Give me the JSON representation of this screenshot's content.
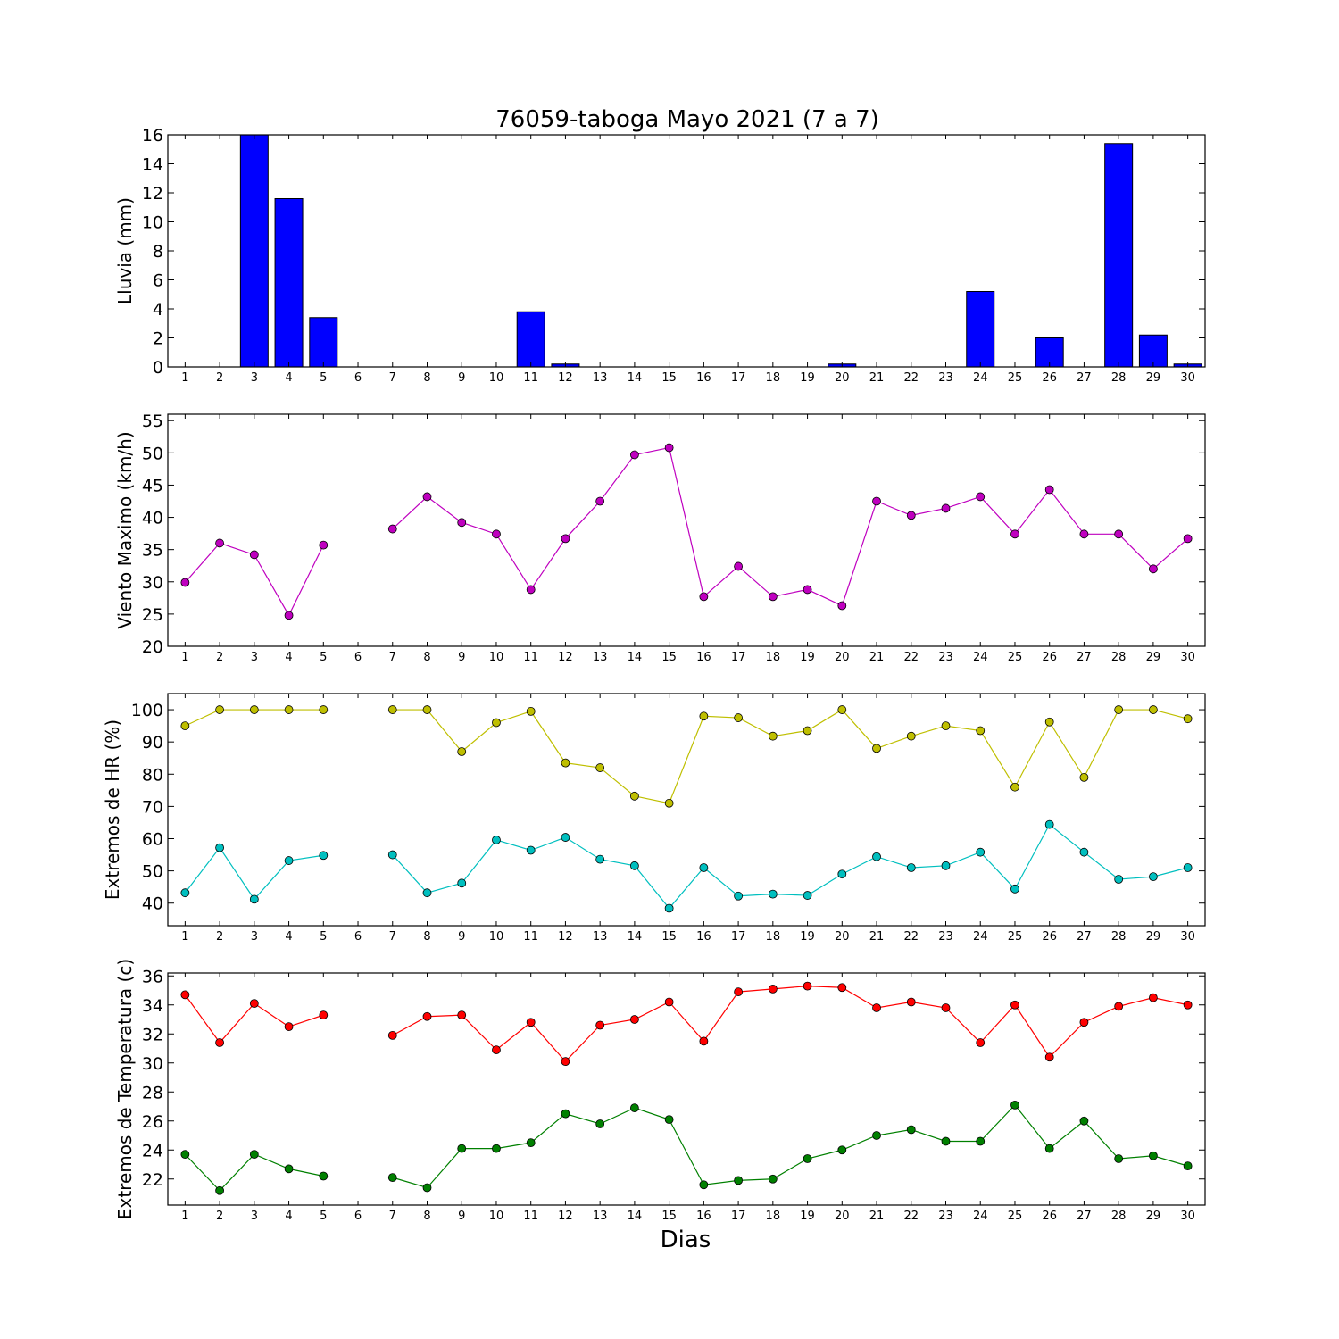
{
  "title": "76059-taboga Mayo 2021  (7 a 7)",
  "xlabel": "Dias",
  "chart_data": [
    {
      "type": "bar",
      "ylabel": "Lluvia (mm)",
      "ylim": [
        0,
        16
      ],
      "yticks": [
        0,
        2,
        4,
        6,
        8,
        10,
        12,
        14,
        16
      ],
      "x": [
        1,
        2,
        3,
        4,
        5,
        6,
        7,
        8,
        9,
        10,
        11,
        12,
        13,
        14,
        15,
        16,
        17,
        18,
        19,
        20,
        21,
        22,
        23,
        24,
        25,
        26,
        27,
        28,
        29,
        30
      ],
      "series": [
        {
          "color": "#0000ff",
          "values": [
            0,
            0,
            16.0,
            11.6,
            3.4,
            0,
            0,
            0,
            0,
            0,
            3.8,
            0.2,
            0,
            0,
            0,
            0,
            0,
            0,
            0,
            0.2,
            0,
            0,
            0,
            5.2,
            0,
            2.0,
            0,
            15.4,
            2.2,
            0.2
          ]
        }
      ]
    },
    {
      "type": "line",
      "ylabel": "Viento Maximo (km/h)",
      "ylim": [
        20,
        56
      ],
      "yticks": [
        20,
        25,
        30,
        35,
        40,
        45,
        50,
        55
      ],
      "x": [
        1,
        2,
        3,
        4,
        5,
        6,
        7,
        8,
        9,
        10,
        11,
        12,
        13,
        14,
        15,
        16,
        17,
        18,
        19,
        20,
        21,
        22,
        23,
        24,
        25,
        26,
        27,
        28,
        29,
        30
      ],
      "series": [
        {
          "color": "#bf00bf",
          "values": [
            29.9,
            36.0,
            34.2,
            24.8,
            35.7,
            null,
            38.2,
            43.2,
            39.2,
            37.4,
            28.8,
            36.7,
            42.5,
            49.7,
            50.8,
            27.7,
            32.4,
            27.7,
            28.8,
            26.3,
            42.5,
            40.3,
            41.4,
            43.2,
            37.4,
            44.3,
            37.4,
            37.4,
            32.0,
            36.7
          ]
        }
      ]
    },
    {
      "type": "line",
      "ylabel": "Extremos de HR (%)",
      "ylim": [
        33,
        105
      ],
      "yticks": [
        40,
        50,
        60,
        70,
        80,
        90,
        100
      ],
      "x": [
        1,
        2,
        3,
        4,
        5,
        6,
        7,
        8,
        9,
        10,
        11,
        12,
        13,
        14,
        15,
        16,
        17,
        18,
        19,
        20,
        21,
        22,
        23,
        24,
        25,
        26,
        27,
        28,
        29,
        30
      ],
      "series": [
        {
          "color": "#bfbf00",
          "values": [
            95,
            100,
            100,
            100,
            100,
            null,
            100,
            100,
            87,
            96,
            99.5,
            83.5,
            82,
            73.2,
            71,
            98,
            97.5,
            91.8,
            93.5,
            100,
            88,
            91.8,
            95,
            93.5,
            76,
            96.2,
            79,
            100,
            100,
            97.2
          ]
        },
        {
          "color": "#00bfbf",
          "values": [
            43.2,
            57.2,
            41.2,
            53.2,
            54.8,
            null,
            55,
            43.2,
            46.2,
            59.6,
            56.4,
            60.4,
            53.6,
            51.6,
            38.4,
            51,
            42.2,
            42.8,
            42.4,
            49,
            54.4,
            51,
            51.6,
            55.8,
            44.4,
            64.4,
            55.8,
            47.4,
            48.2,
            51
          ]
        }
      ]
    },
    {
      "type": "line",
      "ylabel": "Extremos de Temperatura (c)",
      "ylim": [
        20.2,
        36.2
      ],
      "yticks": [
        22,
        24,
        26,
        28,
        30,
        32,
        34,
        36
      ],
      "x": [
        1,
        2,
        3,
        4,
        5,
        6,
        7,
        8,
        9,
        10,
        11,
        12,
        13,
        14,
        15,
        16,
        17,
        18,
        19,
        20,
        21,
        22,
        23,
        24,
        25,
        26,
        27,
        28,
        29,
        30
      ],
      "series": [
        {
          "color": "#ff0000",
          "values": [
            34.7,
            31.4,
            34.1,
            32.5,
            33.3,
            null,
            31.9,
            33.2,
            33.3,
            30.9,
            32.8,
            30.1,
            32.6,
            33.0,
            34.2,
            31.5,
            34.9,
            35.1,
            35.3,
            35.2,
            33.8,
            34.2,
            33.8,
            31.4,
            34.0,
            30.4,
            32.8,
            33.9,
            34.5,
            34.0
          ]
        },
        {
          "color": "#008000",
          "values": [
            23.7,
            21.2,
            23.7,
            22.7,
            22.2,
            null,
            22.1,
            21.4,
            24.1,
            24.1,
            24.5,
            26.5,
            25.8,
            26.9,
            26.1,
            21.6,
            21.9,
            22.0,
            23.4,
            24.0,
            25.0,
            25.4,
            24.6,
            24.6,
            27.1,
            24.1,
            26.0,
            23.4,
            23.6,
            22.9
          ]
        }
      ]
    }
  ]
}
